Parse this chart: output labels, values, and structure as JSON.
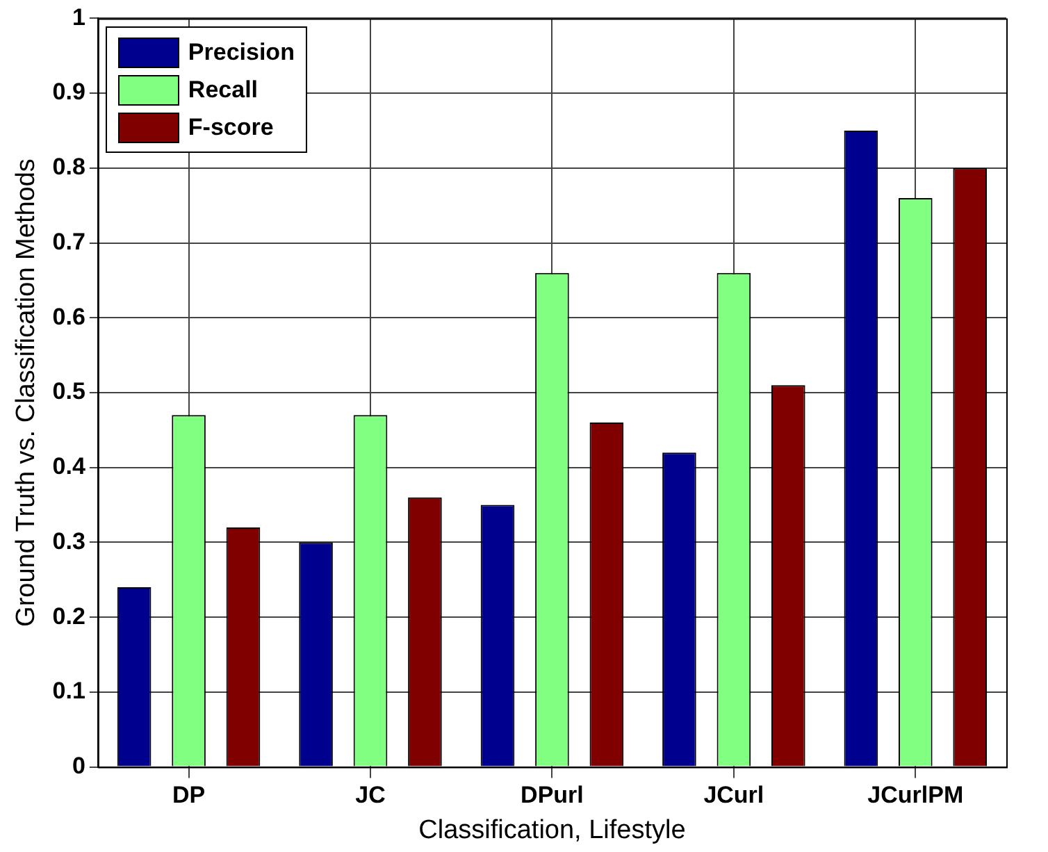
{
  "chart_data": {
    "type": "bar",
    "xlabel": "Classification, Lifestyle",
    "ylabel": "Ground Truth vs. Classification Methods",
    "categories": [
      "DP",
      "JC",
      "DPurl",
      "JCurl",
      "JCurlPM"
    ],
    "series": [
      {
        "name": "Precision",
        "color": "#00008f",
        "values": [
          0.24,
          0.3,
          0.35,
          0.42,
          0.85
        ]
      },
      {
        "name": "Recall",
        "color": "#80ff80",
        "values": [
          0.47,
          0.47,
          0.66,
          0.66,
          0.76
        ]
      },
      {
        "name": "F-score",
        "color": "#800000",
        "values": [
          0.32,
          0.36,
          0.46,
          0.51,
          0.8
        ]
      }
    ],
    "ylim": [
      0,
      1
    ],
    "yticks": [
      0,
      0.1,
      0.2,
      0.3,
      0.4,
      0.5,
      0.6,
      0.7,
      0.8,
      0.9,
      1
    ],
    "grid": true,
    "legend": "top left"
  }
}
